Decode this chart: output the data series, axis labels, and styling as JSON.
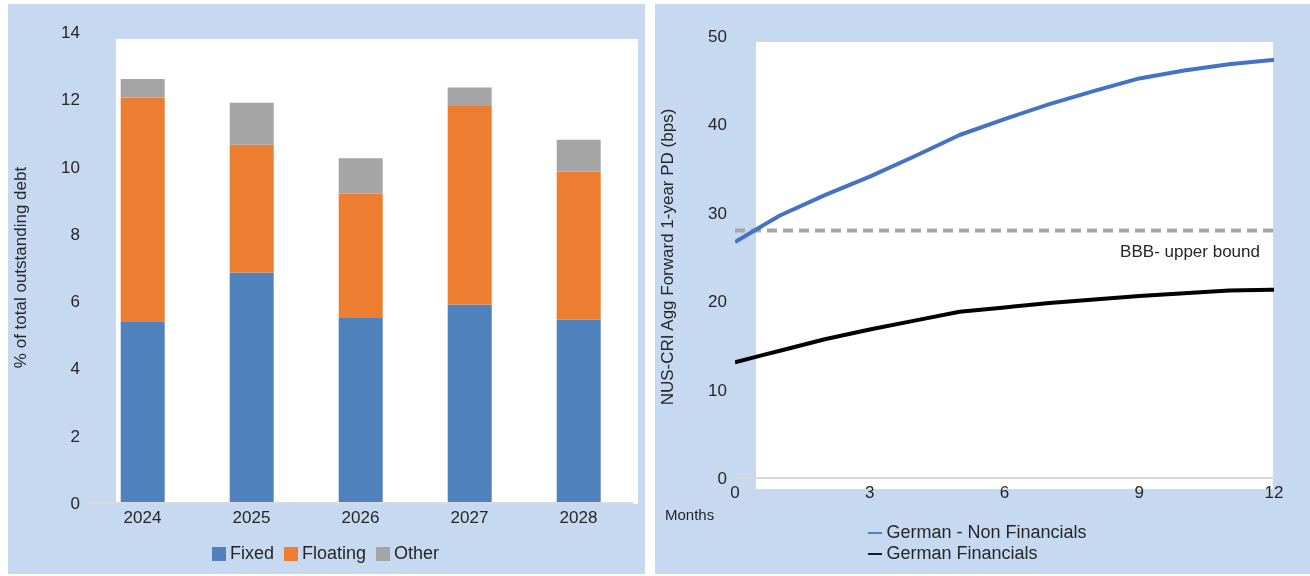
{
  "chart_data": [
    {
      "type": "bar",
      "stacked": true,
      "ylabel": "% of total outstanding debt",
      "categories": [
        "2024",
        "2025",
        "2026",
        "2027",
        "2028"
      ],
      "ylim": [
        0,
        14
      ],
      "yticks": [
        0,
        2,
        4,
        6,
        8,
        10,
        12,
        14
      ],
      "grid": false,
      "legend": "bottom",
      "series": [
        {
          "name": "Fixed",
          "color": "#4f81bd",
          "values": [
            5.4,
            6.85,
            5.5,
            5.9,
            5.45
          ]
        },
        {
          "name": "Floating",
          "color": "#ed7d31",
          "values": [
            6.65,
            3.8,
            3.7,
            5.9,
            4.4
          ]
        },
        {
          "name": "Other",
          "color": "#a5a5a5",
          "values": [
            0.55,
            1.25,
            1.05,
            0.55,
            0.95
          ]
        }
      ]
    },
    {
      "type": "line",
      "ylabel": "NUS-CRI Agg Forward 1-year PD (bps)",
      "xlabel": "Months",
      "x": [
        0,
        1,
        2,
        3,
        4,
        5,
        6,
        7,
        8,
        9,
        10,
        11,
        12
      ],
      "xlim": [
        0,
        12
      ],
      "xticks": [
        0,
        3,
        6,
        9,
        12
      ],
      "ylim": [
        0,
        50
      ],
      "yticks": [
        0,
        10,
        20,
        30,
        40,
        50
      ],
      "grid": false,
      "legend": "bottom",
      "line_style": "solid",
      "series": [
        {
          "name": "German - Non Financials",
          "color": "#4472c4",
          "values": [
            26.7,
            29.7,
            32.0,
            34.1,
            36.4,
            38.8,
            40.6,
            42.3,
            43.8,
            45.2,
            46.1,
            46.8,
            47.3
          ]
        },
        {
          "name": "German Financials",
          "color": "#000000",
          "values": [
            13.1,
            14.4,
            15.7,
            16.8,
            17.8,
            18.8,
            19.3,
            19.8,
            20.2,
            20.6,
            20.9,
            21.2,
            21.3
          ]
        }
      ],
      "ref_lines": [
        {
          "axis": "y",
          "value": 28,
          "label": "BBB- upper bound",
          "color": "#a6a6a6",
          "line_style": "dashed"
        }
      ]
    }
  ]
}
